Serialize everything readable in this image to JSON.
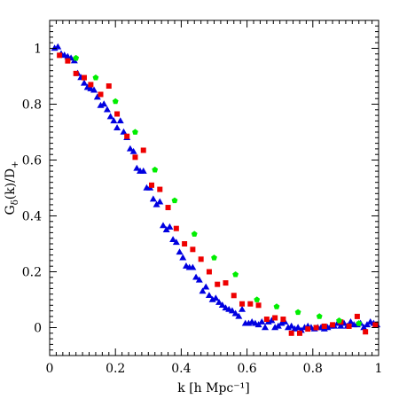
{
  "chart_data": {
    "type": "scatter",
    "xlabel": "k [h Mpc⁻¹]",
    "ylabel_main": "G",
    "ylabel_sub": "δ",
    "ylabel_rest": "(k)/D",
    "ylabel_sub2": "+",
    "xlim": [
      0,
      1
    ],
    "ylim": [
      -0.1,
      1.1
    ],
    "xticks": [
      0,
      0.2,
      0.4,
      0.6,
      0.8,
      1
    ],
    "xtick_labels": [
      "0",
      "0.2",
      "0.4",
      "0.6",
      "0.8",
      "1"
    ],
    "yticks": [
      0,
      0.2,
      0.4,
      0.6,
      0.8,
      1
    ],
    "ytick_labels": [
      "0",
      "0.2",
      "0.4",
      "0.6",
      "0.8",
      "1"
    ],
    "grid": false,
    "series": [
      {
        "marker": "triangle",
        "color": "#0000e0",
        "points": [
          [
            0.015,
            1.0
          ],
          [
            0.025,
            1.005
          ],
          [
            0.035,
            0.98
          ],
          [
            0.045,
            0.975
          ],
          [
            0.055,
            0.97
          ],
          [
            0.065,
            0.965
          ],
          [
            0.075,
            0.955
          ],
          [
            0.085,
            0.91
          ],
          [
            0.095,
            0.895
          ],
          [
            0.105,
            0.875
          ],
          [
            0.115,
            0.86
          ],
          [
            0.125,
            0.855
          ],
          [
            0.135,
            0.85
          ],
          [
            0.145,
            0.825
          ],
          [
            0.155,
            0.795
          ],
          [
            0.165,
            0.8
          ],
          [
            0.175,
            0.78
          ],
          [
            0.185,
            0.755
          ],
          [
            0.195,
            0.74
          ],
          [
            0.205,
            0.715
          ],
          [
            0.215,
            0.74
          ],
          [
            0.225,
            0.7
          ],
          [
            0.235,
            0.68
          ],
          [
            0.245,
            0.64
          ],
          [
            0.255,
            0.63
          ],
          [
            0.265,
            0.57
          ],
          [
            0.275,
            0.56
          ],
          [
            0.285,
            0.56
          ],
          [
            0.295,
            0.5
          ],
          [
            0.305,
            0.5
          ],
          [
            0.315,
            0.46
          ],
          [
            0.325,
            0.44
          ],
          [
            0.335,
            0.45
          ],
          [
            0.345,
            0.365
          ],
          [
            0.355,
            0.35
          ],
          [
            0.365,
            0.36
          ],
          [
            0.375,
            0.315
          ],
          [
            0.385,
            0.305
          ],
          [
            0.395,
            0.27
          ],
          [
            0.405,
            0.25
          ],
          [
            0.415,
            0.22
          ],
          [
            0.425,
            0.215
          ],
          [
            0.435,
            0.215
          ],
          [
            0.445,
            0.18
          ],
          [
            0.455,
            0.17
          ],
          [
            0.465,
            0.13
          ],
          [
            0.475,
            0.145
          ],
          [
            0.485,
            0.115
          ],
          [
            0.495,
            0.1
          ],
          [
            0.505,
            0.105
          ],
          [
            0.515,
            0.09
          ],
          [
            0.525,
            0.08
          ],
          [
            0.535,
            0.07
          ],
          [
            0.545,
            0.065
          ],
          [
            0.555,
            0.06
          ],
          [
            0.565,
            0.05
          ],
          [
            0.575,
            0.04
          ],
          [
            0.585,
            0.065
          ],
          [
            0.595,
            0.015
          ],
          [
            0.605,
            0.015
          ],
          [
            0.615,
            0.02
          ],
          [
            0.625,
            0.015
          ],
          [
            0.635,
            0.01
          ],
          [
            0.645,
            0.02
          ],
          [
            0.655,
            0.0
          ],
          [
            0.665,
            0.02
          ],
          [
            0.675,
            0.025
          ],
          [
            0.685,
            0.0
          ],
          [
            0.695,
            0.005
          ],
          [
            0.705,
            0.015
          ],
          [
            0.715,
            0.02
          ],
          [
            0.725,
            0.0
          ],
          [
            0.735,
            0.005
          ],
          [
            0.745,
            -0.005
          ],
          [
            0.755,
            0.0
          ],
          [
            0.765,
            -0.01
          ],
          [
            0.775,
            0.0
          ],
          [
            0.785,
            0.005
          ],
          [
            0.795,
            0.0
          ],
          [
            0.805,
            -0.005
          ],
          [
            0.815,
            0.0
          ],
          [
            0.825,
            0.0
          ],
          [
            0.835,
            -0.005
          ],
          [
            0.845,
            0.0
          ],
          [
            0.855,
            0.005
          ],
          [
            0.865,
            0.005
          ],
          [
            0.875,
            0.015
          ],
          [
            0.885,
            0.005
          ],
          [
            0.895,
            0.015
          ],
          [
            0.905,
            0.005
          ],
          [
            0.915,
            0.02
          ],
          [
            0.925,
            0.01
          ],
          [
            0.935,
            0.01
          ],
          [
            0.945,
            0.015
          ],
          [
            0.955,
            0.0
          ],
          [
            0.965,
            0.01
          ],
          [
            0.975,
            0.02
          ],
          [
            0.985,
            0.015
          ],
          [
            0.995,
            0.01
          ]
        ]
      },
      {
        "marker": "square",
        "color": "#ee0000",
        "points": [
          [
            0.03,
            0.975
          ],
          [
            0.055,
            0.955
          ],
          [
            0.08,
            0.91
          ],
          [
            0.105,
            0.895
          ],
          [
            0.125,
            0.87
          ],
          [
            0.155,
            0.835
          ],
          [
            0.18,
            0.865
          ],
          [
            0.205,
            0.765
          ],
          [
            0.235,
            0.685
          ],
          [
            0.26,
            0.61
          ],
          [
            0.285,
            0.635
          ],
          [
            0.31,
            0.51
          ],
          [
            0.335,
            0.495
          ],
          [
            0.36,
            0.43
          ],
          [
            0.385,
            0.355
          ],
          [
            0.41,
            0.3
          ],
          [
            0.435,
            0.28
          ],
          [
            0.46,
            0.245
          ],
          [
            0.485,
            0.2
          ],
          [
            0.51,
            0.155
          ],
          [
            0.535,
            0.16
          ],
          [
            0.56,
            0.115
          ],
          [
            0.585,
            0.085
          ],
          [
            0.61,
            0.085
          ],
          [
            0.635,
            0.08
          ],
          [
            0.66,
            0.03
          ],
          [
            0.685,
            0.035
          ],
          [
            0.71,
            0.03
          ],
          [
            0.735,
            -0.02
          ],
          [
            0.76,
            -0.02
          ],
          [
            0.785,
            -0.005
          ],
          [
            0.81,
            0.0
          ],
          [
            0.835,
            0.005
          ],
          [
            0.86,
            0.01
          ],
          [
            0.885,
            0.02
          ],
          [
            0.91,
            0.005
          ],
          [
            0.935,
            0.04
          ],
          [
            0.96,
            -0.015
          ],
          [
            0.99,
            0.01
          ]
        ]
      },
      {
        "marker": "pentagon",
        "color": "#00ee00",
        "points": [
          [
            0.08,
            0.965
          ],
          [
            0.14,
            0.895
          ],
          [
            0.2,
            0.81
          ],
          [
            0.26,
            0.7
          ],
          [
            0.32,
            0.565
          ],
          [
            0.38,
            0.455
          ],
          [
            0.44,
            0.335
          ],
          [
            0.5,
            0.25
          ],
          [
            0.565,
            0.19
          ],
          [
            0.63,
            0.1
          ],
          [
            0.69,
            0.075
          ],
          [
            0.755,
            0.055
          ],
          [
            0.82,
            0.04
          ],
          [
            0.88,
            0.025
          ],
          [
            0.94,
            0.015
          ]
        ]
      }
    ]
  }
}
